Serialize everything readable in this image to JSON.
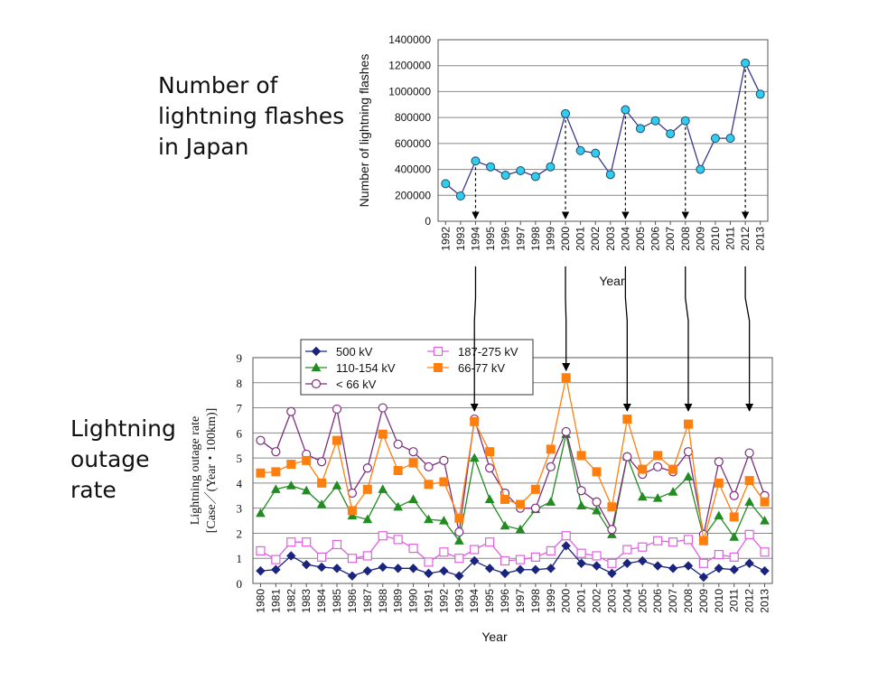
{
  "labels": {
    "top": "Number of\nlightning flashes\nin Japan",
    "bottom": "Lightning\noutage\nrate"
  },
  "colors": {
    "flash_line": "#3a3a8c",
    "flash_marker": "#33ccee",
    "v500": "#1a237e",
    "v110": "#228b22",
    "v187": "#e060e0",
    "v66": "#ff7f0e",
    "vlt66": "#7b2f7b"
  },
  "chart_data": [
    {
      "type": "line",
      "ylabel": "Number of lightning flashes",
      "xlabel": "Year",
      "ylim": [
        0,
        1400000
      ],
      "yticks": [
        "0",
        "200000",
        "400000",
        "600000",
        "800000",
        "1000000",
        "1200000",
        "1400000"
      ],
      "grid": true,
      "categories": [
        "1992",
        "1993",
        "1994",
        "1995",
        "1996",
        "1997",
        "1998",
        "1999",
        "2000",
        "2001",
        "2002",
        "2003",
        "2004",
        "2005",
        "2006",
        "2007",
        "2008",
        "2009",
        "2010",
        "2011",
        "2012",
        "2013"
      ],
      "series": [
        {
          "values": [
            290000,
            195000,
            465000,
            420000,
            355000,
            390000,
            345000,
            420000,
            830000,
            545000,
            525000,
            360000,
            860000,
            715000,
            775000,
            675000,
            775000,
            400000,
            640000,
            640000,
            1220000,
            980000
          ]
        }
      ],
      "annotations": [
        "1994",
        "2000",
        "2004",
        "2008",
        "2012"
      ]
    },
    {
      "type": "line",
      "ylabel": "Lightning outage rate\n[Case／(Year・100km)]",
      "xlabel": "Year",
      "ylim": [
        0,
        9
      ],
      "yticks": [
        "0",
        "1",
        "2",
        "3",
        "4",
        "5",
        "6",
        "7",
        "8",
        "9"
      ],
      "grid": true,
      "legend": "top-left",
      "categories": [
        "1980",
        "1981",
        "1982",
        "1983",
        "1984",
        "1985",
        "1986",
        "1987",
        "1988",
        "1989",
        "1990",
        "1991",
        "1992",
        "1993",
        "1994",
        "1995",
        "1996",
        "1997",
        "1998",
        "1999",
        "2000",
        "2001",
        "2002",
        "2003",
        "2004",
        "2005",
        "2006",
        "2007",
        "2008",
        "2009",
        "2010",
        "2011",
        "2012",
        "2013"
      ],
      "series": [
        {
          "name": "500 kV",
          "marker": "diamond",
          "values": [
            0.5,
            0.55,
            1.1,
            0.75,
            0.65,
            0.6,
            0.3,
            0.5,
            0.65,
            0.6,
            0.6,
            0.4,
            0.5,
            0.3,
            0.9,
            0.6,
            0.4,
            0.55,
            0.55,
            0.6,
            1.5,
            0.8,
            0.7,
            0.4,
            0.8,
            0.9,
            0.7,
            0.6,
            0.7,
            0.25,
            0.6,
            0.55,
            0.8,
            0.5
          ]
        },
        {
          "name": "110-154 kV",
          "marker": "triangle",
          "values": [
            2.8,
            3.75,
            3.9,
            3.7,
            3.15,
            3.9,
            2.7,
            2.55,
            3.75,
            3.05,
            3.35,
            2.55,
            2.5,
            1.7,
            5.0,
            3.35,
            2.3,
            2.15,
            2.95,
            3.25,
            5.95,
            3.1,
            2.9,
            1.95,
            5.05,
            3.45,
            3.4,
            3.65,
            4.25,
            1.85,
            2.7,
            1.85,
            3.25,
            2.5
          ]
        },
        {
          "name": "< 66 kV",
          "marker": "circle-open",
          "values": [
            5.7,
            5.25,
            6.85,
            5.15,
            4.85,
            6.95,
            3.6,
            4.6,
            7.0,
            5.55,
            5.25,
            4.65,
            4.9,
            2.05,
            6.55,
            4.6,
            3.6,
            3.0,
            3.0,
            4.65,
            6.05,
            3.7,
            3.25,
            2.15,
            5.05,
            4.35,
            4.65,
            4.45,
            5.25,
            1.95,
            4.85,
            3.5,
            5.2,
            3.5
          ]
        },
        {
          "name": "187-275 kV",
          "marker": "square-open",
          "values": [
            1.3,
            0.95,
            1.65,
            1.65,
            1.05,
            1.55,
            1.0,
            1.1,
            1.9,
            1.75,
            1.4,
            0.85,
            1.25,
            1.0,
            1.35,
            1.65,
            0.9,
            0.95,
            1.05,
            1.3,
            1.9,
            1.2,
            1.1,
            0.8,
            1.35,
            1.45,
            1.7,
            1.65,
            1.75,
            0.8,
            1.15,
            1.05,
            1.95,
            1.25
          ]
        },
        {
          "name": "66-77 kV",
          "marker": "square",
          "values": [
            4.4,
            4.45,
            4.75,
            4.9,
            4.0,
            5.7,
            2.9,
            3.75,
            5.95,
            4.5,
            4.8,
            3.95,
            4.05,
            2.6,
            6.45,
            5.25,
            3.35,
            3.15,
            3.75,
            5.35,
            8.2,
            5.1,
            4.45,
            3.05,
            6.55,
            4.55,
            5.1,
            4.55,
            6.35,
            1.7,
            4.0,
            2.65,
            4.1,
            3.25
          ]
        }
      ],
      "annotations": [
        "1994",
        "2000",
        "2004",
        "2008",
        "2012"
      ]
    }
  ]
}
